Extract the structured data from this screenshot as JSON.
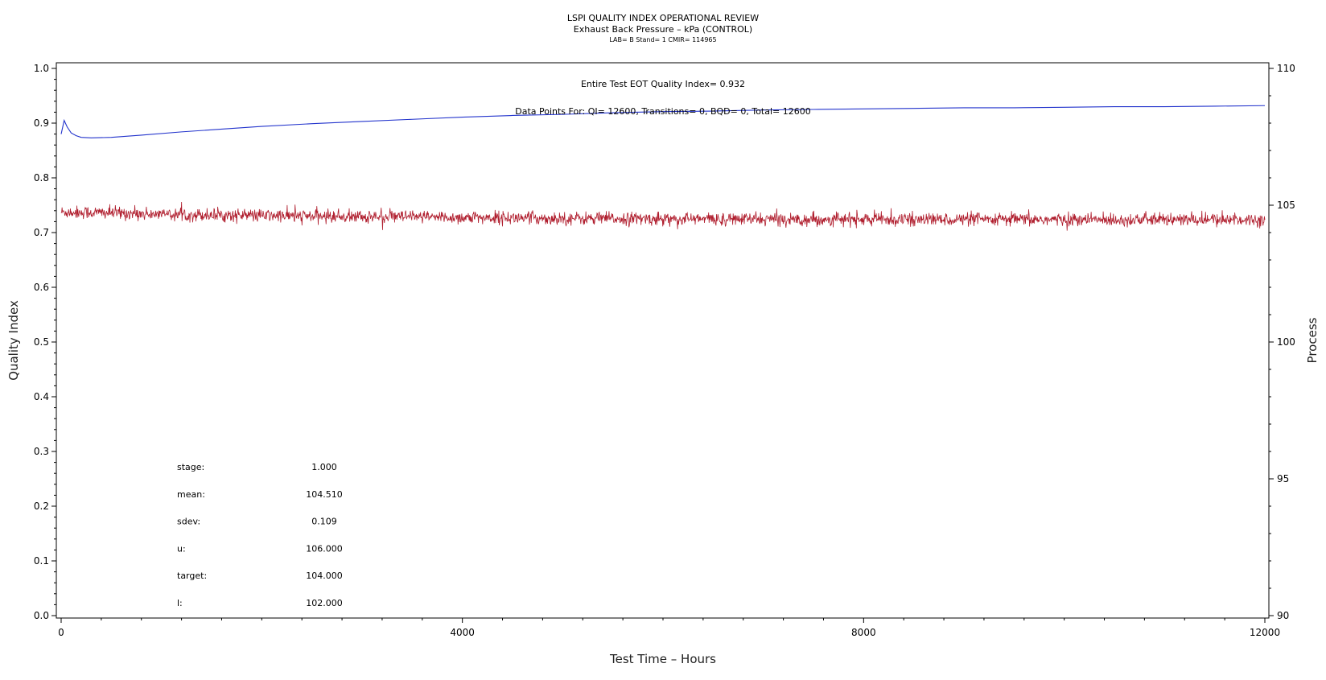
{
  "chart_data": {
    "type": "line",
    "title": "LSPI QUALITY INDEX OPERATIONAL REVIEW",
    "subtitle": "Exhaust Back Pressure – kPa (CONTROL)",
    "subtitle2": "LAB= B Stand= 1 CMIR= 114965",
    "xlabel": "Test Time – Hours",
    "ylabel": "Quality Index",
    "y2label": "Process",
    "xlim": [
      0,
      12000
    ],
    "ylim": [
      0,
      1.0
    ],
    "y2lim": [
      90,
      110
    ],
    "x_ticks": [
      "0",
      "4000",
      "8000",
      "12000"
    ],
    "y_ticks": [
      "0.0",
      "0.1",
      "0.2",
      "0.3",
      "0.4",
      "0.5",
      "0.6",
      "0.7",
      "0.8",
      "0.9",
      "1.0"
    ],
    "y2_ticks": [
      "90",
      "95",
      "100",
      "105",
      "110"
    ],
    "annotation_qi": "Entire Test EOT Quality Index=   0.932",
    "annotation_points": "Data Points For: QI= 12600, Transitions=     0, BQD=     0, Total= 12600",
    "stats": [
      {
        "label": "stage:",
        "value": "1.000"
      },
      {
        "label": "mean:",
        "value": "104.510"
      },
      {
        "label": "sdev:",
        "value": "0.109"
      },
      {
        "label": "u:",
        "value": "106.000"
      },
      {
        "label": "target:",
        "value": "104.000"
      },
      {
        "label": "l:",
        "value": "102.000"
      }
    ],
    "series": [
      {
        "axis": "left",
        "color": "#2233cc",
        "x": [
          0,
          30,
          60,
          100,
          150,
          200,
          300,
          500,
          800,
          1200,
          1600,
          2000,
          2500,
          3000,
          3500,
          4000,
          4500,
          5000,
          5500,
          6000,
          6500,
          7000,
          7500,
          8000,
          8500,
          9000,
          9500,
          10000,
          10500,
          11000,
          11500,
          12000
        ],
        "y": [
          0.88,
          0.905,
          0.893,
          0.882,
          0.877,
          0.874,
          0.873,
          0.874,
          0.878,
          0.884,
          0.889,
          0.894,
          0.899,
          0.903,
          0.907,
          0.911,
          0.914,
          0.916,
          0.919,
          0.921,
          0.922,
          0.924,
          0.925,
          0.926,
          0.927,
          0.928,
          0.928,
          0.929,
          0.93,
          0.93,
          0.931,
          0.932
        ]
      },
      {
        "axis": "right",
        "color": "#b01e2e",
        "noisy": true,
        "noise_sd": 0.109,
        "x": [
          0,
          500,
          1000,
          2000,
          3000,
          4000,
          5000,
          6000,
          7000,
          8000,
          9000,
          10000,
          11000,
          12000
        ],
        "y": [
          104.75,
          104.72,
          104.67,
          104.62,
          104.58,
          104.55,
          104.52,
          104.5,
          104.49,
          104.48,
          104.48,
          104.47,
          104.47,
          104.47
        ]
      }
    ]
  }
}
